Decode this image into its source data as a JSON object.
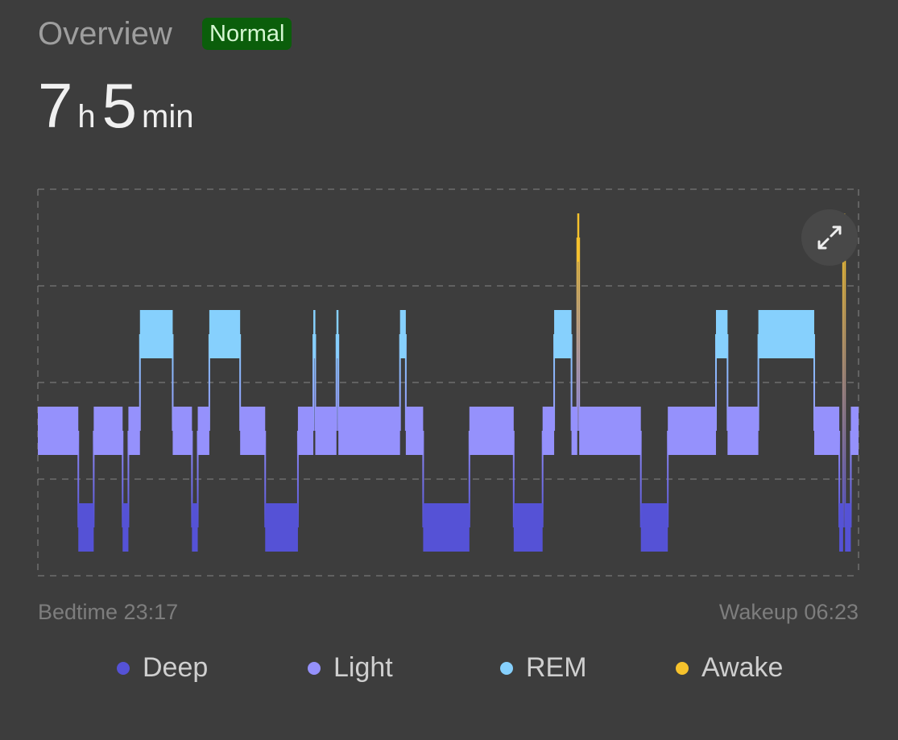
{
  "header": {
    "title": "Overview",
    "badge": "Normal",
    "hours": "7",
    "hours_unit": "h",
    "minutes": "5",
    "minutes_unit": "min"
  },
  "footer": {
    "bedtime": "Bedtime 23:17",
    "wakeup": "Wakeup 06:23"
  },
  "legend": [
    {
      "label": "Deep",
      "color": "#5552d6"
    },
    {
      "label": "Light",
      "color": "#9591fc"
    },
    {
      "label": "REM",
      "color": "#86d0fd"
    },
    {
      "label": "Awake",
      "color": "#f6c22c"
    }
  ],
  "chart_data": {
    "type": "hypnogram",
    "x_unit": "minutes since bedtime",
    "xlim": [
      0,
      426
    ],
    "stages": [
      "Awake",
      "REM",
      "Light",
      "Deep"
    ],
    "segments": [
      [
        "Light",
        0,
        21
      ],
      [
        "Deep",
        21,
        29
      ],
      [
        "Light",
        29,
        44
      ],
      [
        "Deep",
        44,
        47
      ],
      [
        "Light",
        47,
        53
      ],
      [
        "REM",
        53,
        70
      ],
      [
        "Light",
        70,
        80
      ],
      [
        "Deep",
        80,
        83
      ],
      [
        "Light",
        83,
        89
      ],
      [
        "REM",
        89,
        105
      ],
      [
        "Light",
        105,
        118
      ],
      [
        "Deep",
        118,
        135
      ],
      [
        "Light",
        135,
        143
      ],
      [
        "REM",
        143,
        144
      ],
      [
        "Light",
        144,
        155
      ],
      [
        "REM",
        155,
        156
      ],
      [
        "Light",
        156,
        188
      ],
      [
        "REM",
        188,
        191
      ],
      [
        "Light",
        191,
        200
      ],
      [
        "Deep",
        200,
        224
      ],
      [
        "Light",
        224,
        247
      ],
      [
        "Deep",
        247,
        262
      ],
      [
        "Light",
        262,
        268
      ],
      [
        "REM",
        268,
        277
      ],
      [
        "Light",
        277,
        280
      ],
      [
        "Awake",
        280,
        281
      ],
      [
        "Light",
        281,
        313
      ],
      [
        "Deep",
        313,
        327
      ],
      [
        "Light",
        327,
        352
      ],
      [
        "REM",
        352,
        358
      ],
      [
        "Light",
        358,
        374
      ],
      [
        "REM",
        374,
        403
      ],
      [
        "Light",
        403,
        416
      ],
      [
        "Deep",
        416,
        418
      ],
      [
        "Awake",
        418,
        419
      ],
      [
        "Deep",
        419,
        422
      ],
      [
        "Light",
        422,
        426
      ]
    ],
    "grid": true
  }
}
